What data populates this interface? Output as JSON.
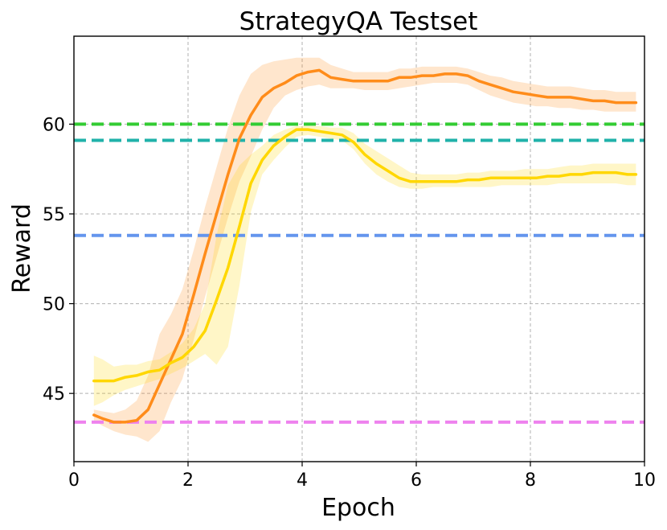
{
  "chart_data": {
    "type": "line",
    "title": "StrategyQA Testset",
    "xlabel": "Epoch",
    "ylabel": "Reward",
    "xlim": [
      0,
      10
    ],
    "ylim": [
      41.2,
      64.9
    ],
    "xticks": [
      0,
      2,
      4,
      6,
      8,
      10
    ],
    "yticks": [
      45,
      50,
      55,
      60
    ],
    "grid": true,
    "legend": "none",
    "series": [
      {
        "color": "#ff8c1a",
        "x": [
          0.35,
          0.5,
          0.7,
          0.9,
          1.1,
          1.3,
          1.5,
          1.7,
          1.9,
          2.1,
          2.3,
          2.5,
          2.7,
          2.9,
          3.1,
          3.3,
          3.5,
          3.7,
          3.9,
          4.1,
          4.3,
          4.5,
          4.7,
          4.9,
          5.1,
          5.3,
          5.5,
          5.7,
          5.9,
          6.1,
          6.3,
          6.5,
          6.7,
          6.9,
          7.1,
          7.3,
          7.5,
          7.7,
          7.9,
          8.1,
          8.3,
          8.5,
          8.7,
          8.9,
          9.1,
          9.3,
          9.5,
          9.7,
          9.85
        ],
        "y": [
          43.8,
          43.6,
          43.4,
          43.4,
          43.5,
          44.1,
          45.5,
          46.9,
          48.3,
          50.5,
          52.8,
          55.0,
          57.2,
          59.2,
          60.5,
          61.5,
          62.0,
          62.3,
          62.7,
          62.9,
          63.0,
          62.6,
          62.5,
          62.4,
          62.4,
          62.4,
          62.4,
          62.6,
          62.6,
          62.7,
          62.7,
          62.8,
          62.8,
          62.7,
          62.4,
          62.2,
          62.0,
          61.8,
          61.7,
          61.6,
          61.5,
          61.5,
          61.5,
          61.4,
          61.3,
          61.3,
          61.2,
          61.2,
          61.2
        ],
        "lower": [
          43.5,
          43.2,
          42.9,
          42.7,
          42.6,
          42.3,
          42.9,
          44.5,
          45.8,
          48.0,
          50.4,
          52.6,
          54.8,
          56.8,
          58.2,
          59.7,
          60.9,
          61.6,
          61.9,
          62.1,
          62.2,
          62.0,
          62.0,
          62.0,
          61.9,
          61.9,
          61.9,
          62.0,
          62.1,
          62.2,
          62.3,
          62.3,
          62.3,
          62.2,
          61.9,
          61.6,
          61.4,
          61.2,
          61.1,
          61.0,
          61.0,
          60.9,
          60.9,
          60.8,
          60.8,
          60.7,
          60.7,
          60.7,
          60.7
        ],
        "upper": [
          44.1,
          44.0,
          43.9,
          44.1,
          44.6,
          46.0,
          48.3,
          49.4,
          50.8,
          53.0,
          55.4,
          57.6,
          59.8,
          61.6,
          62.8,
          63.3,
          63.5,
          63.6,
          63.7,
          63.7,
          63.7,
          63.3,
          63.1,
          62.9,
          62.9,
          62.9,
          62.9,
          63.1,
          63.1,
          63.2,
          63.2,
          63.2,
          63.2,
          63.1,
          62.9,
          62.7,
          62.6,
          62.4,
          62.3,
          62.2,
          62.1,
          62.1,
          62.1,
          62.0,
          61.9,
          61.9,
          61.8,
          61.8,
          61.8
        ]
      },
      {
        "color": "#ffd700",
        "x": [
          0.35,
          0.5,
          0.7,
          0.9,
          1.1,
          1.3,
          1.5,
          1.7,
          1.9,
          2.1,
          2.3,
          2.5,
          2.7,
          2.9,
          3.1,
          3.3,
          3.5,
          3.7,
          3.9,
          4.1,
          4.3,
          4.5,
          4.7,
          4.9,
          5.1,
          5.3,
          5.5,
          5.7,
          5.9,
          6.1,
          6.3,
          6.5,
          6.7,
          6.9,
          7.1,
          7.3,
          7.5,
          7.7,
          7.9,
          8.1,
          8.3,
          8.5,
          8.7,
          8.9,
          9.1,
          9.3,
          9.5,
          9.7,
          9.85
        ],
        "y": [
          45.7,
          45.7,
          45.7,
          45.9,
          46.0,
          46.2,
          46.3,
          46.7,
          47.0,
          47.6,
          48.5,
          50.2,
          52.0,
          54.3,
          56.7,
          58.0,
          58.8,
          59.3,
          59.7,
          59.7,
          59.6,
          59.5,
          59.4,
          59.0,
          58.3,
          57.8,
          57.4,
          57.0,
          56.8,
          56.8,
          56.8,
          56.8,
          56.8,
          56.9,
          56.9,
          57.0,
          57.0,
          57.0,
          57.0,
          57.0,
          57.1,
          57.1,
          57.2,
          57.2,
          57.3,
          57.3,
          57.3,
          57.2,
          57.2
        ],
        "lower": [
          44.3,
          44.5,
          44.9,
          45.2,
          45.4,
          45.6,
          45.8,
          46.1,
          46.4,
          46.8,
          47.2,
          46.6,
          47.6,
          51.0,
          55.1,
          57.2,
          58.0,
          58.7,
          59.3,
          59.4,
          59.3,
          59.2,
          59.1,
          58.6,
          57.8,
          57.2,
          56.8,
          56.5,
          56.4,
          56.4,
          56.5,
          56.5,
          56.5,
          56.5,
          56.5,
          56.5,
          56.6,
          56.6,
          56.6,
          56.6,
          56.6,
          56.7,
          56.7,
          56.7,
          56.7,
          56.7,
          56.7,
          56.6,
          56.6
        ],
        "upper": [
          47.1,
          46.9,
          46.5,
          46.6,
          46.6,
          46.8,
          46.9,
          47.3,
          47.8,
          48.6,
          50.0,
          53.8,
          56.6,
          57.7,
          58.3,
          58.8,
          59.4,
          59.7,
          59.9,
          59.9,
          59.9,
          59.8,
          59.8,
          59.5,
          58.9,
          58.5,
          58.1,
          57.7,
          57.3,
          57.2,
          57.2,
          57.2,
          57.2,
          57.3,
          57.3,
          57.4,
          57.4,
          57.4,
          57.5,
          57.5,
          57.5,
          57.6,
          57.7,
          57.7,
          57.8,
          57.8,
          57.8,
          57.8,
          57.8
        ]
      }
    ],
    "hlines": [
      {
        "y": 60.0,
        "color": "#33cc33"
      },
      {
        "y": 59.1,
        "color": "#20b2aa"
      },
      {
        "y": 53.8,
        "color": "#6495ed"
      },
      {
        "y": 43.4,
        "color": "#ee82ee"
      }
    ]
  }
}
